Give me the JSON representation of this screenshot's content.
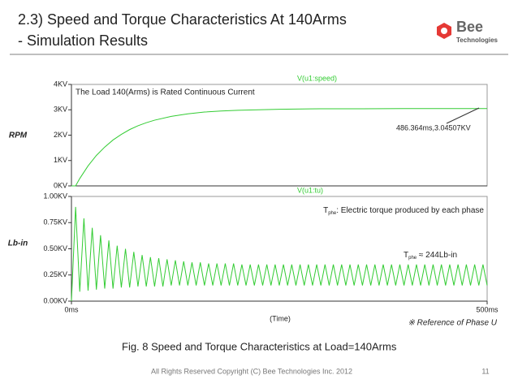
{
  "slide": {
    "title_line1": "2.3) Speed and Torque Characteristics At 140Arms",
    "title_line2": "- Simulation Results",
    "logo_name": "Bee",
    "logo_sub": "Technologies",
    "caption": "Fig. 8 Speed and Torque Characteristics at Load=140Arms",
    "reference_note": "※ Reference of Phase U",
    "footer": "All Rights Reserved Copyright (C) Bee Technologies Inc. 2012",
    "page_number": "11"
  },
  "chart_data": [
    {
      "type": "line",
      "ylabel": "RPM",
      "annotation": "The Load 140(Arms) is Rated Continuous Current",
      "cursor_label": "486.364ms,3.04507KV",
      "x": [
        0,
        5,
        10,
        20,
        30,
        40,
        50,
        60,
        70,
        80,
        90,
        100,
        120,
        140,
        160,
        180,
        200,
        250,
        300,
        350,
        400,
        450,
        500
      ],
      "series": [
        {
          "name": "V(u1:speed)",
          "color": "#33cc33",
          "values": [
            0,
            0,
            0.29,
            0.79,
            1.2,
            1.53,
            1.81,
            2.03,
            2.22,
            2.37,
            2.49,
            2.59,
            2.74,
            2.84,
            2.91,
            2.95,
            2.98,
            3.02,
            3.04,
            3.04,
            3.05,
            3.05,
            3.05
          ]
        }
      ],
      "xlim": [
        0,
        500
      ],
      "ylim": [
        0,
        4
      ],
      "yticks": [
        {
          "value": 4,
          "label": "4KV"
        },
        {
          "value": 3,
          "label": "3KV"
        },
        {
          "value": 2,
          "label": "2KV"
        },
        {
          "value": 1,
          "label": "1KV"
        },
        {
          "value": 0,
          "label": "0KV"
        }
      ]
    },
    {
      "type": "line",
      "ylabel": "Lb-in",
      "xlabel": "(Time)",
      "annotations": [
        {
          "main": "T",
          "sub": "phe",
          "text": ": Electric torque produced by each phase"
        },
        {
          "main": "T",
          "sub": "phe",
          "text": " ≈ 244Lb-in"
        }
      ],
      "x": [
        0,
        5,
        10,
        15,
        20,
        25,
        30,
        35,
        40,
        45,
        50,
        55,
        60,
        65,
        70,
        75,
        80,
        85,
        90,
        95,
        100,
        105,
        110,
        115,
        120,
        125,
        130,
        135,
        140,
        145,
        150,
        155,
        160,
        165,
        170,
        175,
        180,
        185,
        190,
        195,
        200,
        205,
        210,
        215,
        220,
        225,
        230,
        235,
        240,
        245,
        250,
        255,
        260,
        265,
        270,
        275,
        280,
        285,
        290,
        295,
        300,
        305,
        310,
        315,
        320,
        325,
        330,
        335,
        340,
        345,
        350,
        355,
        360,
        365,
        370,
        375,
        380,
        385,
        390,
        395,
        400,
        405,
        410,
        415,
        420,
        425,
        430,
        435,
        440,
        445,
        450,
        455,
        460,
        465,
        470,
        475,
        480,
        485,
        490,
        495,
        500
      ],
      "series": [
        {
          "name": "V(u1:tu)",
          "color": "#33cc33",
          "values": [
            0,
            0.9,
            0.09,
            0.79,
            0.1,
            0.7,
            0.11,
            0.63,
            0.12,
            0.58,
            0.12,
            0.53,
            0.13,
            0.5,
            0.13,
            0.47,
            0.14,
            0.44,
            0.14,
            0.42,
            0.14,
            0.41,
            0.14,
            0.4,
            0.15,
            0.39,
            0.15,
            0.38,
            0.15,
            0.37,
            0.15,
            0.37,
            0.15,
            0.36,
            0.15,
            0.36,
            0.15,
            0.36,
            0.15,
            0.36,
            0.15,
            0.35,
            0.15,
            0.35,
            0.15,
            0.35,
            0.15,
            0.35,
            0.15,
            0.35,
            0.15,
            0.35,
            0.15,
            0.35,
            0.15,
            0.35,
            0.15,
            0.35,
            0.15,
            0.35,
            0.15,
            0.35,
            0.15,
            0.35,
            0.15,
            0.35,
            0.15,
            0.35,
            0.15,
            0.35,
            0.15,
            0.35,
            0.15,
            0.35,
            0.15,
            0.35,
            0.15,
            0.35,
            0.15,
            0.35,
            0.15,
            0.35,
            0.15,
            0.35,
            0.15,
            0.35,
            0.15,
            0.35,
            0.15,
            0.35,
            0.15,
            0.35,
            0.15,
            0.35,
            0.15,
            0.35,
            0.15,
            0.35,
            0.15,
            0.35,
            0.15
          ]
        }
      ],
      "xlim": [
        0,
        500
      ],
      "ylim": [
        0,
        1
      ],
      "xticks": [
        {
          "value": 0,
          "label": "0ms"
        },
        {
          "value": 500,
          "label": "500ms"
        }
      ],
      "yticks": [
        {
          "value": 1,
          "label": "1.00KV"
        },
        {
          "value": 0.75,
          "label": "0.75KV"
        },
        {
          "value": 0.5,
          "label": "0.50KV"
        },
        {
          "value": 0.25,
          "label": "0.25KV"
        },
        {
          "value": 0,
          "label": "0.00KV"
        }
      ]
    }
  ]
}
